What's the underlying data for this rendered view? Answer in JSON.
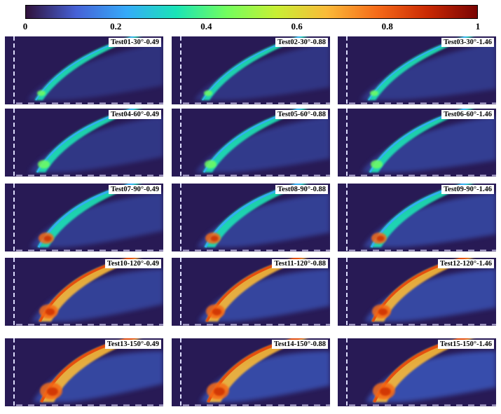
{
  "colorbar": {
    "ticks": [
      "0",
      "0.2",
      "0.4",
      "0.6",
      "0.8",
      "1"
    ],
    "tick_values": [
      0,
      0.2,
      0.4,
      0.6,
      0.8,
      1
    ],
    "colormap": [
      "#30123b",
      "#4661d6",
      "#36aaf9",
      "#1ae4b6",
      "#72fe5e",
      "#c8ef34",
      "#faba39",
      "#f66b19",
      "#ca2a04",
      "#7a0403"
    ]
  },
  "panels": [
    {
      "label": "Test01-30°-0.49",
      "angle": 30,
      "level": 0.49
    },
    {
      "label": "Test02-30°-0.88",
      "angle": 30,
      "level": 0.88
    },
    {
      "label": "Test03-30°-1.46",
      "angle": 30,
      "level": 1.46
    },
    {
      "label": "Test04-60°-0.49",
      "angle": 60,
      "level": 0.49
    },
    {
      "label": "Test05-60°-0.88",
      "angle": 60,
      "level": 0.88
    },
    {
      "label": "Test06-60°-1.46",
      "angle": 60,
      "level": 1.46
    },
    {
      "label": "Test07-90°-0.49",
      "angle": 90,
      "level": 0.49
    },
    {
      "label": "Test08-90°-0.88",
      "angle": 90,
      "level": 0.88
    },
    {
      "label": "Test09-90°-1.46",
      "angle": 90,
      "level": 1.46
    },
    {
      "label": "Test10-120°-0.49",
      "angle": 120,
      "level": 0.49
    },
    {
      "label": "Test11-120°-0.88",
      "angle": 120,
      "level": 0.88
    },
    {
      "label": "Test12-120°-1.46",
      "angle": 120,
      "level": 1.46
    },
    {
      "label": "Test13-150°-0.49",
      "angle": 150,
      "level": 0.49
    },
    {
      "label": "Test14-150°-0.88",
      "angle": 150,
      "level": 0.88
    },
    {
      "label": "Test15-150°-1.46",
      "angle": 150,
      "level": 1.46
    }
  ]
}
